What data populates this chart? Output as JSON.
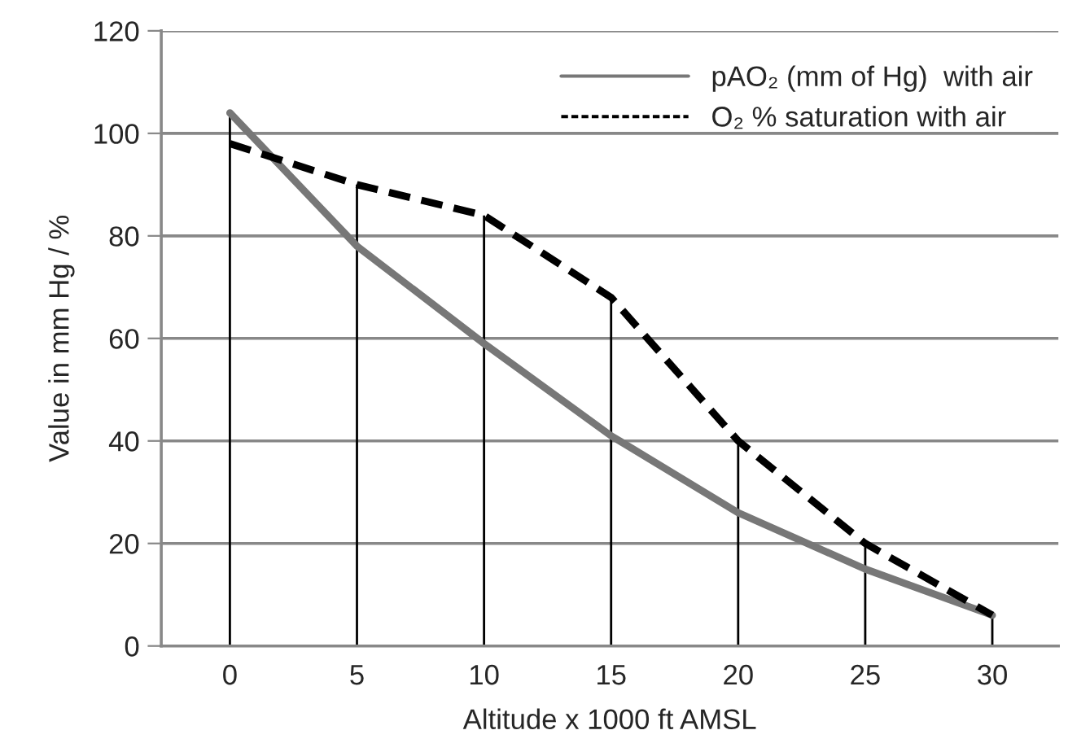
{
  "chart_data": {
    "type": "line",
    "xlabel": "Altitude x 1000 ft AMSL",
    "ylabel": "Value in mm Hg / %",
    "x": [
      0,
      5,
      10,
      15,
      20,
      25,
      30
    ],
    "series": [
      {
        "name": "pAO₂ (mm of Hg)  with air",
        "color": "#777777",
        "line_style": "solid",
        "values": [
          104,
          78,
          59,
          41,
          26,
          15,
          6
        ]
      },
      {
        "name": "O₂ % saturation with air",
        "color": "#000000",
        "line_style": "dashed",
        "values": [
          98,
          90,
          84,
          68,
          40,
          20,
          6
        ]
      },
      {
        "type": "bar",
        "color": "#000000",
        "values": [
          104,
          90,
          84,
          68,
          40,
          20,
          6
        ]
      }
    ],
    "xlim": [
      -2.7,
      32.6
    ],
    "xticks": [
      0,
      5,
      10,
      15,
      20,
      25,
      30
    ],
    "ylim": [
      0,
      120
    ],
    "yticks": [
      0,
      20,
      40,
      60,
      80,
      100,
      120
    ],
    "grid": "y",
    "legend": "top right",
    "marker": "none"
  }
}
